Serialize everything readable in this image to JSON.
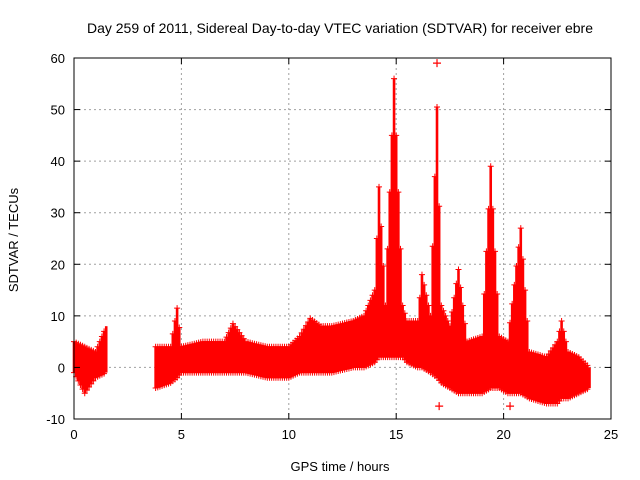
{
  "chart_data": {
    "type": "scatter",
    "title": "Day 259 of 2011, Sidereal Day-to-day VTEC variation (SDTVAR) for receiver ebre",
    "xlabel": "GPS time / hours",
    "ylabel": "SDTVAR / TECUs",
    "xlim": [
      0,
      25
    ],
    "ylim": [
      -10,
      60
    ],
    "xticks": [
      "0",
      "5",
      "10",
      "15",
      "20",
      "25"
    ],
    "yticks": [
      "-10",
      "0",
      "10",
      "20",
      "30",
      "40",
      "50",
      "60"
    ],
    "grid": true,
    "marker": "+",
    "color": "#ff0000",
    "series": [
      {
        "name": "SDTVAR",
        "envelope": [
          {
            "x": 0.0,
            "lo": -1,
            "hi": 5
          },
          {
            "x": 0.5,
            "lo": -5,
            "hi": 4
          },
          {
            "x": 1.0,
            "lo": -2,
            "hi": 3
          },
          {
            "x": 1.5,
            "lo": -1,
            "hi": 8
          },
          {
            "x": 3.8,
            "lo": -4,
            "hi": 4
          },
          {
            "x": 4.5,
            "lo": -3,
            "hi": 4
          },
          {
            "x": 4.8,
            "lo": -2,
            "hi": 11.5
          },
          {
            "x": 5.0,
            "lo": -1,
            "hi": 4
          },
          {
            "x": 6.0,
            "lo": -1,
            "hi": 5
          },
          {
            "x": 7.0,
            "lo": -1,
            "hi": 5
          },
          {
            "x": 7.4,
            "lo": -1,
            "hi": 8.5
          },
          {
            "x": 8.0,
            "lo": -1,
            "hi": 5
          },
          {
            "x": 9.0,
            "lo": -2,
            "hi": 4
          },
          {
            "x": 10.0,
            "lo": -2,
            "hi": 4
          },
          {
            "x": 10.5,
            "lo": -1,
            "hi": 6
          },
          {
            "x": 11.0,
            "lo": -1,
            "hi": 9.5
          },
          {
            "x": 11.5,
            "lo": -1,
            "hi": 8
          },
          {
            "x": 12.0,
            "lo": -1,
            "hi": 8
          },
          {
            "x": 13.0,
            "lo": 0,
            "hi": 9
          },
          {
            "x": 13.5,
            "lo": 0,
            "hi": 10
          },
          {
            "x": 14.0,
            "lo": 1,
            "hi": 15
          },
          {
            "x": 14.2,
            "lo": 2,
            "hi": 35
          },
          {
            "x": 14.5,
            "lo": 2,
            "hi": 12
          },
          {
            "x": 14.9,
            "lo": 2,
            "hi": 56
          },
          {
            "x": 15.3,
            "lo": 2,
            "hi": 12
          },
          {
            "x": 15.5,
            "lo": 1,
            "hi": 9
          },
          {
            "x": 16.0,
            "lo": 0,
            "hi": 9
          },
          {
            "x": 16.2,
            "lo": 0,
            "hi": 18
          },
          {
            "x": 16.6,
            "lo": -1,
            "hi": 10
          },
          {
            "x": 16.9,
            "lo": -2,
            "hi": 50.5
          },
          {
            "x": 17.1,
            "lo": -3,
            "hi": 12
          },
          {
            "x": 17.5,
            "lo": -4,
            "hi": 8
          },
          {
            "x": 17.9,
            "lo": -5,
            "hi": 19
          },
          {
            "x": 18.3,
            "lo": -5,
            "hi": 5
          },
          {
            "x": 19.0,
            "lo": -5,
            "hi": 6
          },
          {
            "x": 19.4,
            "lo": -4,
            "hi": 39
          },
          {
            "x": 19.8,
            "lo": -4,
            "hi": 6
          },
          {
            "x": 20.2,
            "lo": -5,
            "hi": 5
          },
          {
            "x": 20.8,
            "lo": -5,
            "hi": 27
          },
          {
            "x": 21.2,
            "lo": -6,
            "hi": 3
          },
          {
            "x": 22.0,
            "lo": -7,
            "hi": 2
          },
          {
            "x": 22.5,
            "lo": -7,
            "hi": 5
          },
          {
            "x": 22.7,
            "lo": -6,
            "hi": 9
          },
          {
            "x": 23.0,
            "lo": -6,
            "hi": 3
          },
          {
            "x": 23.5,
            "lo": -5,
            "hi": 2
          },
          {
            "x": 24.0,
            "lo": -4,
            "hi": 0
          }
        ],
        "outliers": [
          {
            "x": 16.9,
            "y": 59
          },
          {
            "x": 17.0,
            "y": -7.5
          },
          {
            "x": 20.3,
            "y": -7.5
          }
        ]
      }
    ]
  }
}
